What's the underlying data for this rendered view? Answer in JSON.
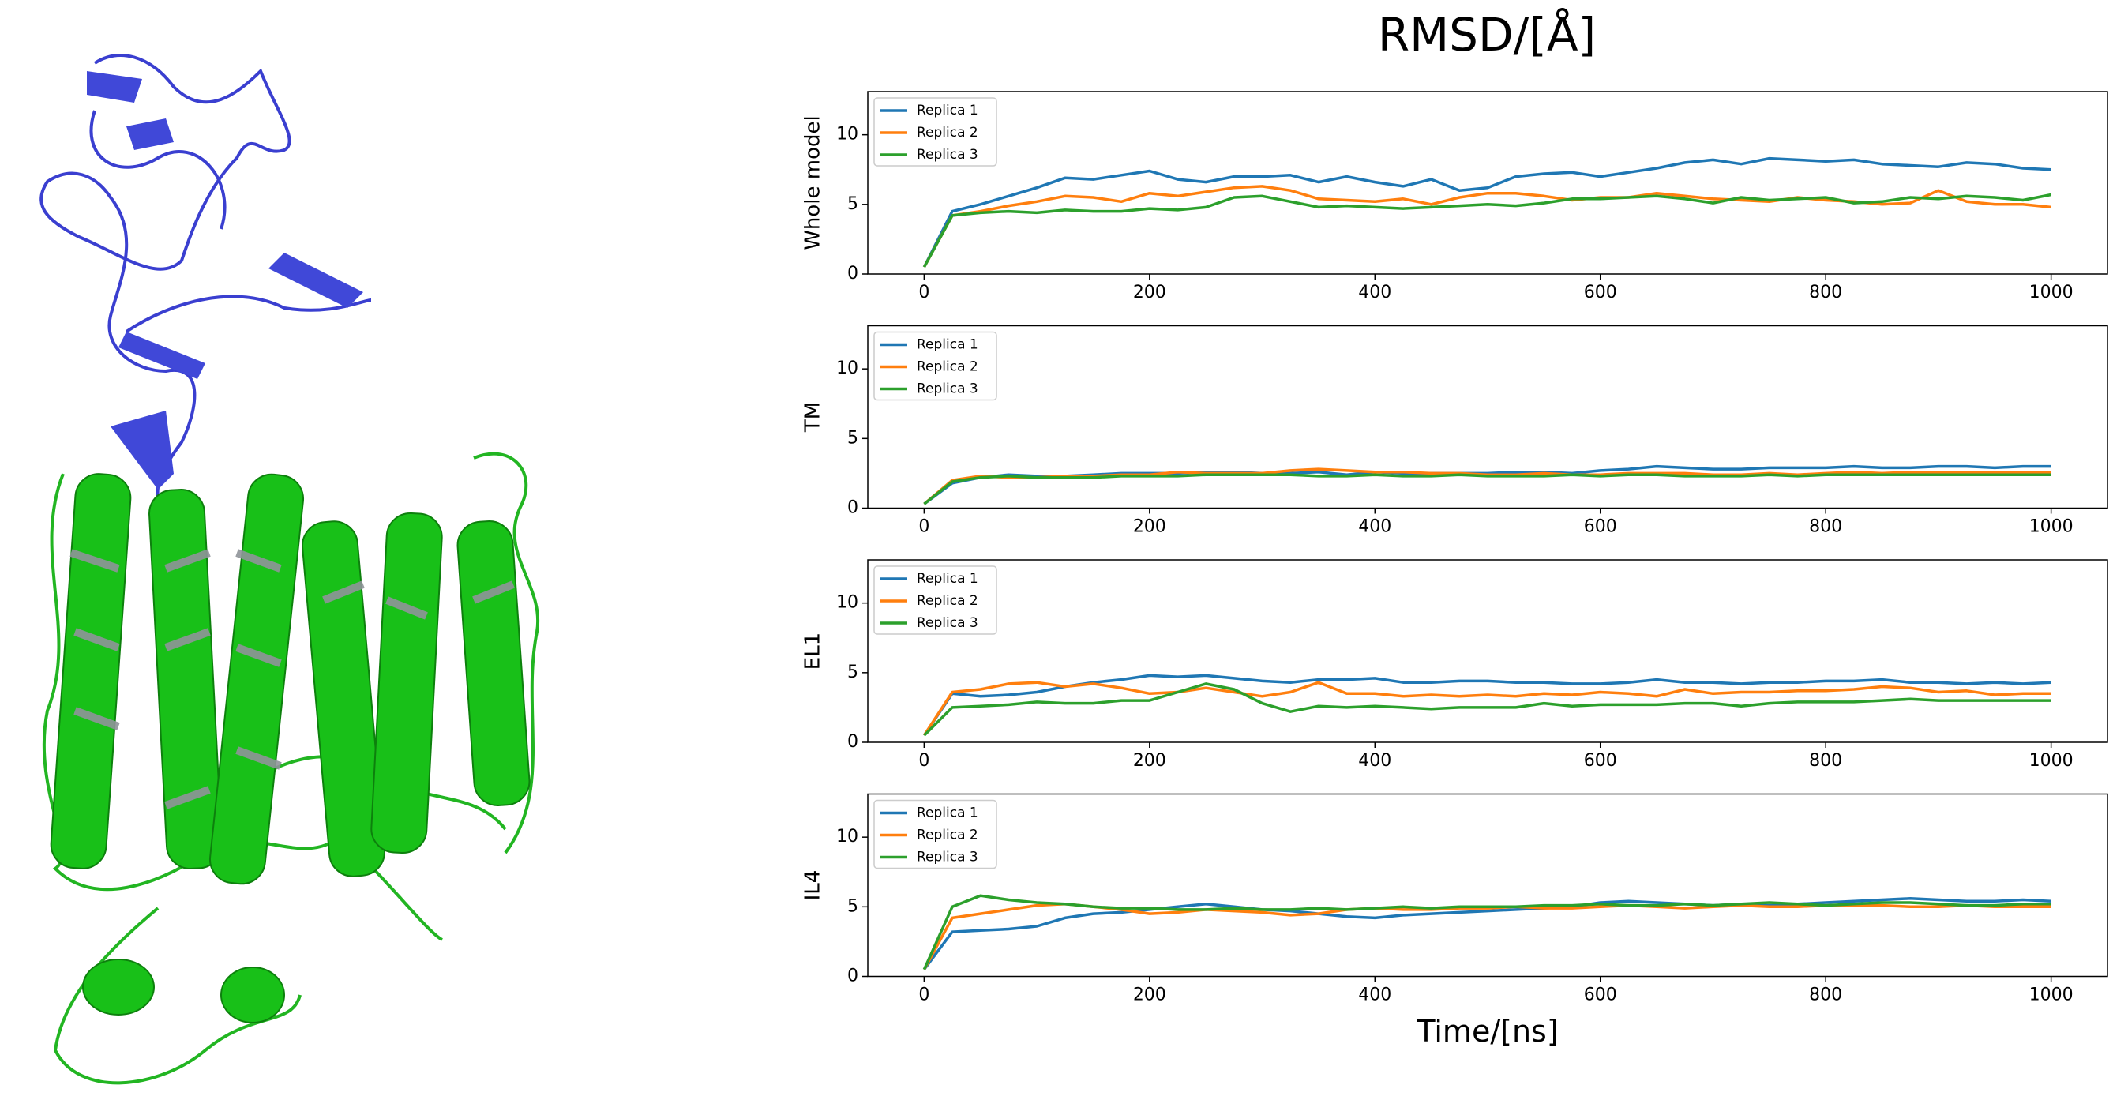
{
  "title": "RMSD/[Å]",
  "chart_data": [
    {
      "type": "line",
      "ylabel": "Whole model",
      "legend": "upper left",
      "x": [
        0,
        25,
        50,
        75,
        100,
        125,
        150,
        175,
        200,
        225,
        250,
        275,
        300,
        325,
        350,
        375,
        400,
        425,
        450,
        475,
        500,
        525,
        550,
        575,
        600,
        625,
        650,
        675,
        700,
        725,
        750,
        775,
        800,
        825,
        850,
        875,
        900,
        925,
        950,
        975,
        1000
      ],
      "xlim": [
        -50,
        1050
      ],
      "ylim": [
        0,
        13.1
      ],
      "xticks": [
        0,
        200,
        400,
        600,
        800,
        1000
      ],
      "yticks": [
        0,
        5,
        10
      ],
      "series": [
        {
          "name": "Replica 1",
          "color": "#1f77b4",
          "values": [
            0.5,
            4.5,
            5.0,
            5.6,
            6.2,
            6.9,
            6.8,
            7.1,
            7.4,
            6.8,
            6.6,
            7.0,
            7.0,
            7.1,
            6.6,
            7.0,
            6.6,
            6.3,
            6.8,
            6.0,
            6.2,
            7.0,
            7.2,
            7.3,
            7.0,
            7.3,
            7.6,
            8.0,
            8.2,
            7.9,
            8.3,
            8.2,
            8.1,
            8.2,
            7.9,
            7.8,
            7.7,
            8.0,
            7.9,
            7.6,
            7.5
          ]
        },
        {
          "name": "Replica 2",
          "color": "#ff7f0e",
          "values": [
            0.5,
            4.2,
            4.5,
            4.9,
            5.2,
            5.6,
            5.5,
            5.2,
            5.8,
            5.6,
            5.9,
            6.2,
            6.3,
            6.0,
            5.4,
            5.3,
            5.2,
            5.4,
            5.0,
            5.5,
            5.8,
            5.8,
            5.6,
            5.3,
            5.5,
            5.5,
            5.8,
            5.6,
            5.4,
            5.3,
            5.2,
            5.5,
            5.3,
            5.2,
            5.0,
            5.1,
            6.0,
            5.2,
            5.0,
            5.0,
            4.8
          ]
        },
        {
          "name": "Replica 3",
          "color": "#2ca02c",
          "values": [
            0.5,
            4.2,
            4.4,
            4.5,
            4.4,
            4.6,
            4.5,
            4.5,
            4.7,
            4.6,
            4.8,
            5.5,
            5.6,
            5.2,
            4.8,
            4.9,
            4.8,
            4.7,
            4.8,
            4.9,
            5.0,
            4.9,
            5.1,
            5.4,
            5.4,
            5.5,
            5.6,
            5.4,
            5.1,
            5.5,
            5.3,
            5.4,
            5.5,
            5.1,
            5.2,
            5.5,
            5.4,
            5.6,
            5.5,
            5.3,
            5.7
          ]
        }
      ]
    },
    {
      "type": "line",
      "ylabel": "TM",
      "legend": "upper left",
      "x": [
        0,
        25,
        50,
        75,
        100,
        125,
        150,
        175,
        200,
        225,
        250,
        275,
        300,
        325,
        350,
        375,
        400,
        425,
        450,
        475,
        500,
        525,
        550,
        575,
        600,
        625,
        650,
        675,
        700,
        725,
        750,
        775,
        800,
        825,
        850,
        875,
        900,
        925,
        950,
        975,
        1000
      ],
      "xlim": [
        -50,
        1050
      ],
      "ylim": [
        0,
        13.1
      ],
      "xticks": [
        0,
        200,
        400,
        600,
        800,
        1000
      ],
      "yticks": [
        0,
        5,
        10
      ],
      "series": [
        {
          "name": "Replica 1",
          "color": "#1f77b4",
          "values": [
            0.3,
            1.8,
            2.2,
            2.4,
            2.3,
            2.3,
            2.4,
            2.5,
            2.5,
            2.5,
            2.6,
            2.6,
            2.5,
            2.5,
            2.6,
            2.4,
            2.6,
            2.5,
            2.5,
            2.5,
            2.5,
            2.6,
            2.6,
            2.5,
            2.7,
            2.8,
            3.0,
            2.9,
            2.8,
            2.8,
            2.9,
            2.9,
            2.9,
            3.0,
            2.9,
            2.9,
            3.0,
            3.0,
            2.9,
            3.0,
            3.0
          ]
        },
        {
          "name": "Replica 2",
          "color": "#ff7f0e",
          "values": [
            0.3,
            2.0,
            2.3,
            2.2,
            2.2,
            2.3,
            2.3,
            2.4,
            2.4,
            2.6,
            2.5,
            2.5,
            2.5,
            2.7,
            2.8,
            2.7,
            2.6,
            2.6,
            2.5,
            2.5,
            2.4,
            2.4,
            2.5,
            2.4,
            2.4,
            2.5,
            2.5,
            2.5,
            2.4,
            2.4,
            2.5,
            2.4,
            2.5,
            2.6,
            2.5,
            2.6,
            2.6,
            2.6,
            2.6,
            2.6,
            2.6
          ]
        },
        {
          "name": "Replica 3",
          "color": "#2ca02c",
          "values": [
            0.3,
            1.9,
            2.2,
            2.3,
            2.2,
            2.2,
            2.2,
            2.3,
            2.3,
            2.3,
            2.4,
            2.4,
            2.4,
            2.4,
            2.3,
            2.3,
            2.4,
            2.3,
            2.3,
            2.4,
            2.3,
            2.3,
            2.3,
            2.4,
            2.3,
            2.4,
            2.4,
            2.3,
            2.3,
            2.3,
            2.4,
            2.3,
            2.4,
            2.4,
            2.4,
            2.4,
            2.4,
            2.4,
            2.4,
            2.4,
            2.4
          ]
        }
      ]
    },
    {
      "type": "line",
      "ylabel": "EL1",
      "legend": "upper left",
      "x": [
        0,
        25,
        50,
        75,
        100,
        125,
        150,
        175,
        200,
        225,
        250,
        275,
        300,
        325,
        350,
        375,
        400,
        425,
        450,
        475,
        500,
        525,
        550,
        575,
        600,
        625,
        650,
        675,
        700,
        725,
        750,
        775,
        800,
        825,
        850,
        875,
        900,
        925,
        950,
        975,
        1000
      ],
      "xlim": [
        -50,
        1050
      ],
      "ylim": [
        0,
        13.1
      ],
      "xticks": [
        0,
        200,
        400,
        600,
        800,
        1000
      ],
      "yticks": [
        0,
        5,
        10
      ],
      "series": [
        {
          "name": "Replica 1",
          "color": "#1f77b4",
          "values": [
            0.5,
            3.5,
            3.3,
            3.4,
            3.6,
            4.0,
            4.3,
            4.5,
            4.8,
            4.7,
            4.8,
            4.6,
            4.4,
            4.3,
            4.5,
            4.5,
            4.6,
            4.3,
            4.3,
            4.4,
            4.4,
            4.3,
            4.3,
            4.2,
            4.2,
            4.3,
            4.5,
            4.3,
            4.3,
            4.2,
            4.3,
            4.3,
            4.4,
            4.4,
            4.5,
            4.3,
            4.3,
            4.2,
            4.3,
            4.2,
            4.3
          ]
        },
        {
          "name": "Replica 2",
          "color": "#ff7f0e",
          "values": [
            0.5,
            3.6,
            3.8,
            4.2,
            4.3,
            4.0,
            4.2,
            3.9,
            3.5,
            3.6,
            3.9,
            3.6,
            3.3,
            3.6,
            4.3,
            3.5,
            3.5,
            3.3,
            3.4,
            3.3,
            3.4,
            3.3,
            3.5,
            3.4,
            3.6,
            3.5,
            3.3,
            3.8,
            3.5,
            3.6,
            3.6,
            3.7,
            3.7,
            3.8,
            4.0,
            3.9,
            3.6,
            3.7,
            3.4,
            3.5,
            3.5
          ]
        },
        {
          "name": "Replica 3",
          "color": "#2ca02c",
          "values": [
            0.5,
            2.5,
            2.6,
            2.7,
            2.9,
            2.8,
            2.8,
            3.0,
            3.0,
            3.6,
            4.2,
            3.8,
            2.8,
            2.2,
            2.6,
            2.5,
            2.6,
            2.5,
            2.4,
            2.5,
            2.5,
            2.5,
            2.8,
            2.6,
            2.7,
            2.7,
            2.7,
            2.8,
            2.8,
            2.6,
            2.8,
            2.9,
            2.9,
            2.9,
            3.0,
            3.1,
            3.0,
            3.0,
            3.0,
            3.0,
            3.0
          ]
        }
      ]
    },
    {
      "type": "line",
      "ylabel": "IL4",
      "xlabel": "Time/[ns]",
      "legend": "upper left",
      "x": [
        0,
        25,
        50,
        75,
        100,
        125,
        150,
        175,
        200,
        225,
        250,
        275,
        300,
        325,
        350,
        375,
        400,
        425,
        450,
        475,
        500,
        525,
        550,
        575,
        600,
        625,
        650,
        675,
        700,
        725,
        750,
        775,
        800,
        825,
        850,
        875,
        900,
        925,
        950,
        975,
        1000
      ],
      "xlim": [
        -50,
        1050
      ],
      "ylim": [
        0,
        13.1
      ],
      "xticks": [
        0,
        200,
        400,
        600,
        800,
        1000
      ],
      "yticks": [
        0,
        5,
        10
      ],
      "series": [
        {
          "name": "Replica 1",
          "color": "#1f77b4",
          "values": [
            0.5,
            3.2,
            3.3,
            3.4,
            3.6,
            4.2,
            4.5,
            4.6,
            4.8,
            5.0,
            5.2,
            5.0,
            4.8,
            4.7,
            4.5,
            4.3,
            4.2,
            4.4,
            4.5,
            4.6,
            4.7,
            4.8,
            4.9,
            5.0,
            5.3,
            5.4,
            5.3,
            5.2,
            5.1,
            5.2,
            5.1,
            5.2,
            5.3,
            5.4,
            5.5,
            5.6,
            5.5,
            5.4,
            5.4,
            5.5,
            5.4
          ]
        },
        {
          "name": "Replica 2",
          "color": "#ff7f0e",
          "values": [
            0.5,
            4.2,
            4.5,
            4.8,
            5.1,
            5.2,
            5.0,
            4.8,
            4.5,
            4.6,
            4.8,
            4.7,
            4.6,
            4.4,
            4.5,
            4.8,
            4.9,
            4.8,
            4.8,
            4.9,
            4.9,
            5.0,
            4.9,
            4.9,
            5.0,
            5.1,
            5.0,
            4.9,
            5.0,
            5.1,
            5.0,
            5.0,
            5.1,
            5.1,
            5.1,
            5.0,
            5.0,
            5.1,
            5.0,
            5.0,
            5.0
          ]
        },
        {
          "name": "Replica 3",
          "color": "#2ca02c",
          "values": [
            0.5,
            5.0,
            5.8,
            5.5,
            5.3,
            5.2,
            5.0,
            4.9,
            4.9,
            4.8,
            4.8,
            4.9,
            4.8,
            4.8,
            4.9,
            4.8,
            4.9,
            5.0,
            4.9,
            5.0,
            5.0,
            5.0,
            5.1,
            5.1,
            5.2,
            5.1,
            5.1,
            5.2,
            5.1,
            5.2,
            5.3,
            5.2,
            5.1,
            5.2,
            5.3,
            5.3,
            5.2,
            5.1,
            5.1,
            5.2,
            5.2
          ]
        }
      ]
    }
  ]
}
